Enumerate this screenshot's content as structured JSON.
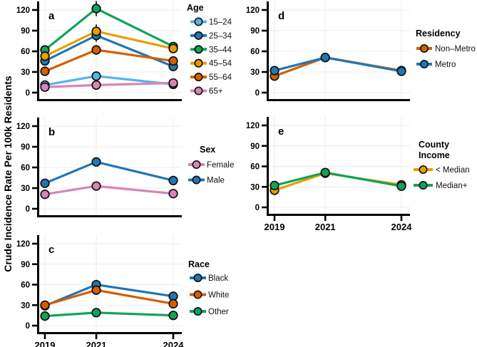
{
  "figure": {
    "ylabel": "Crude Incidence Rate Per 100k Residents",
    "background_color": "#ffffff",
    "axis_color": "#000000",
    "grid_color": "#ececec"
  },
  "chart_data": [
    {
      "type": "line",
      "panel_label": "a",
      "legend_title_lines": [
        "Age"
      ],
      "x": [
        2019,
        2021,
        2024
      ],
      "x_labels": [
        "2019",
        "2021",
        "2024"
      ],
      "y_ticks": [
        0,
        30,
        60,
        90,
        120
      ],
      "ylim": [
        0,
        120
      ],
      "grid": true,
      "legend_position": "right",
      "series": [
        {
          "name": "15–24",
          "color": "#56B4E9",
          "values": [
            11,
            24,
            12
          ],
          "err": [
            2,
            3,
            2
          ]
        },
        {
          "name": "25–34",
          "color": "#1F77B4",
          "values": [
            46,
            83,
            38
          ],
          "err": [
            5,
            9,
            5
          ]
        },
        {
          "name": "35–44",
          "color": "#10A35C",
          "values": [
            62,
            122,
            67
          ],
          "err": [
            6,
            11,
            6
          ]
        },
        {
          "name": "45–54",
          "color": "#E69F00",
          "values": [
            53,
            89,
            64
          ],
          "err": [
            5,
            10,
            5
          ]
        },
        {
          "name": "55–64",
          "color": "#D55E00",
          "values": [
            31,
            62,
            46
          ],
          "err": [
            4,
            7,
            4
          ]
        },
        {
          "name": "65+",
          "color": "#D885B8",
          "values": [
            8,
            11,
            14
          ],
          "err": [
            2,
            2,
            2
          ]
        }
      ]
    },
    {
      "type": "line",
      "panel_label": "b",
      "legend_title_lines": [
        "Sex"
      ],
      "x": [
        2019,
        2021,
        2024
      ],
      "x_labels": [
        "2019",
        "2021",
        "2024"
      ],
      "y_ticks": [
        0,
        30,
        60,
        90,
        120
      ],
      "ylim": [
        0,
        120
      ],
      "grid": true,
      "legend_position": "right",
      "series": [
        {
          "name": "Female",
          "color": "#D885B8",
          "values": [
            21,
            33,
            22
          ],
          "err": [
            2,
            2,
            2
          ]
        },
        {
          "name": "Male",
          "color": "#1F77B4",
          "values": [
            37,
            68,
            41
          ],
          "err": [
            3,
            3,
            3
          ]
        }
      ]
    },
    {
      "type": "line",
      "panel_label": "c",
      "legend_title_lines": [
        "Race"
      ],
      "x": [
        2019,
        2021,
        2024
      ],
      "x_labels": [
        "2019",
        "2021",
        "2024"
      ],
      "y_ticks": [
        0,
        30,
        60,
        90,
        120
      ],
      "ylim": [
        0,
        120
      ],
      "grid": true,
      "legend_position": "right",
      "series": [
        {
          "name": "Black",
          "color": "#1F77B4",
          "values": [
            29,
            60,
            43
          ],
          "err": [
            3,
            7,
            6
          ]
        },
        {
          "name": "White",
          "color": "#D55E00",
          "values": [
            30,
            52,
            32
          ],
          "err": [
            3,
            5,
            4
          ]
        },
        {
          "name": "Other",
          "color": "#10A35C",
          "values": [
            14,
            19,
            15
          ],
          "err": [
            2,
            5,
            3
          ]
        }
      ]
    },
    {
      "type": "line",
      "panel_label": "d",
      "legend_title_lines": [
        "Residency"
      ],
      "x": [
        2019,
        2021,
        2024
      ],
      "x_labels": [
        "2019",
        "2021",
        "2024"
      ],
      "y_ticks": [
        0,
        30,
        60,
        90,
        120
      ],
      "ylim": [
        0,
        120
      ],
      "grid": true,
      "legend_position": "right",
      "series": [
        {
          "name": "Non–Metro",
          "color": "#D55E00",
          "values": [
            24,
            51,
            32
          ],
          "err": [
            2,
            2,
            3
          ]
        },
        {
          "name": "Metro",
          "color": "#1F77B4",
          "values": [
            32,
            51,
            31
          ],
          "err": [
            2,
            2,
            3
          ]
        }
      ]
    },
    {
      "type": "line",
      "panel_label": "e",
      "legend_title_lines": [
        "County",
        "Income"
      ],
      "x": [
        2019,
        2021,
        2024
      ],
      "x_labels": [
        "2019",
        "2021",
        "2024"
      ],
      "y_ticks": [
        0,
        30,
        60,
        90,
        120
      ],
      "ylim": [
        0,
        120
      ],
      "grid": true,
      "legend_position": "right",
      "series": [
        {
          "name": "< Median",
          "color": "#E69F00",
          "values": [
            25,
            50,
            33
          ],
          "err": [
            2,
            2,
            3
          ]
        },
        {
          "name": "Median+",
          "color": "#10A35C",
          "values": [
            32,
            51,
            31
          ],
          "err": [
            2,
            2,
            3
          ]
        }
      ]
    }
  ]
}
